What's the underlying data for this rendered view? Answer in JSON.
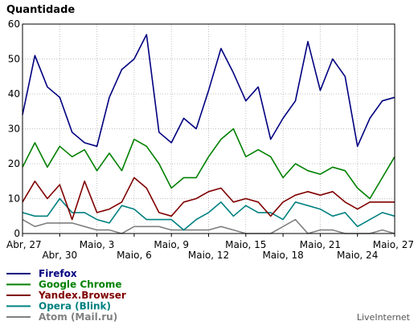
{
  "chart_data": {
    "type": "line",
    "ylabel": "Quantidade",
    "ylim": [
      0,
      60
    ],
    "yticks": [
      0,
      10,
      20,
      30,
      40,
      50,
      60
    ],
    "grid": true,
    "legend_position": "bottom-left",
    "credit": "LiveInternet",
    "x": [
      "Abr, 27",
      "Abr, 28",
      "Abr, 29",
      "Abr, 30",
      "Maio, 1",
      "Maio, 2",
      "Maio, 3",
      "Maio, 4",
      "Maio, 5",
      "Maio, 6",
      "Maio, 7",
      "Maio, 8",
      "Maio, 9",
      "Maio, 10",
      "Maio, 11",
      "Maio, 12",
      "Maio, 13",
      "Maio, 14",
      "Maio, 15",
      "Maio, 16",
      "Maio, 17",
      "Maio, 18",
      "Maio, 19",
      "Maio, 20",
      "Maio, 21",
      "Maio, 22",
      "Maio, 23",
      "Maio, 24",
      "Maio, 25",
      "Maio, 26",
      "Maio, 27"
    ],
    "x_tick_labels": [
      {
        "index": 0,
        "label": "Abr, 27"
      },
      {
        "index": 3,
        "label": "Abr, 30"
      },
      {
        "index": 6,
        "label": "Maio, 3"
      },
      {
        "index": 9,
        "label": "Maio, 6"
      },
      {
        "index": 12,
        "label": "Maio, 9"
      },
      {
        "index": 15,
        "label": "Maio, 12"
      },
      {
        "index": 18,
        "label": "Maio, 15"
      },
      {
        "index": 21,
        "label": "Maio, 18"
      },
      {
        "index": 24,
        "label": "Maio, 21"
      },
      {
        "index": 27,
        "label": "Maio, 24"
      },
      {
        "index": 30,
        "label": "Maio, 27"
      }
    ],
    "series": [
      {
        "name": "Firefox",
        "color": "#000080",
        "values": [
          34,
          51,
          42,
          39,
          29,
          26,
          25,
          39,
          47,
          50,
          57,
          29,
          26,
          33,
          30,
          41,
          53,
          46,
          38,
          42,
          27,
          33,
          38,
          55,
          41,
          50,
          45,
          25,
          33,
          38,
          39
        ]
      },
      {
        "name": "Google Chrome",
        "color": "#008000",
        "values": [
          19,
          26,
          19,
          25,
          22,
          24,
          18,
          23,
          18,
          27,
          25,
          20,
          13,
          16,
          16,
          22,
          27,
          30,
          22,
          24,
          22,
          16,
          20,
          18,
          17,
          19,
          18,
          13,
          10,
          16,
          22
        ]
      },
      {
        "name": "Yandex.Browser",
        "color": "#800000",
        "values": [
          9,
          15,
          10,
          14,
          4,
          15,
          6,
          7,
          9,
          16,
          13,
          6,
          5,
          9,
          10,
          12,
          13,
          9,
          10,
          9,
          5,
          9,
          11,
          12,
          11,
          12,
          9,
          7,
          9,
          9,
          9
        ]
      },
      {
        "name": "Opera (Blink)",
        "color": "#008080",
        "values": [
          6,
          5,
          5,
          10,
          6,
          6,
          4,
          3,
          8,
          7,
          4,
          4,
          4,
          1,
          4,
          6,
          9,
          5,
          8,
          6,
          6,
          4,
          9,
          8,
          7,
          5,
          6,
          2,
          4,
          6,
          5
        ]
      },
      {
        "name": "Atom (Mail.ru)",
        "color": "#808080",
        "values": [
          4,
          2,
          3,
          3,
          3,
          2,
          1,
          1,
          0,
          2,
          2,
          2,
          1,
          1,
          1,
          1,
          2,
          1,
          0,
          0,
          0,
          2,
          4,
          0,
          1,
          1,
          0,
          0,
          0,
          1,
          0
        ]
      }
    ]
  }
}
